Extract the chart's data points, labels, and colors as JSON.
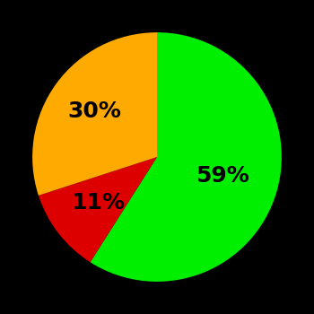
{
  "slices": [
    59,
    11,
    30
  ],
  "colors": [
    "#00ee00",
    "#dd0000",
    "#ffaa00"
  ],
  "labels": [
    "59%",
    "11%",
    "30%"
  ],
  "label_radii": [
    0.55,
    0.6,
    0.62
  ],
  "background_color": "#000000",
  "text_color": "#000000",
  "startangle": 90,
  "counterclock": false,
  "figsize": [
    3.5,
    3.5
  ],
  "dpi": 100,
  "fontsize": 18
}
